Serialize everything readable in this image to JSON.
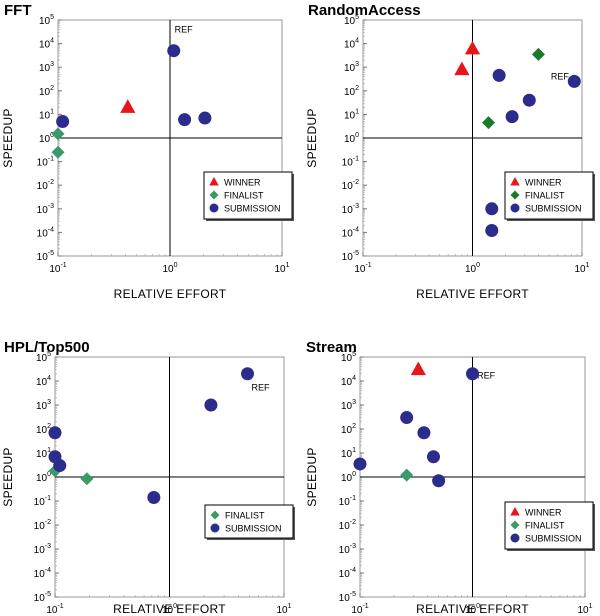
{
  "colors": {
    "winner": "#e8161b",
    "finalist": "#3a9a6a",
    "finalist_alt": "#1a7a2a",
    "submission": "#2c2c8c"
  },
  "chart_data": [
    {
      "type": "scatter",
      "title": "FFT",
      "xlabel": "RELATIVE EFFORT",
      "ylabel": "SPEEDUP",
      "xscale": "log",
      "yscale": "log",
      "xlim": [
        0.1,
        10
      ],
      "ylim": [
        1e-05,
        100000.0
      ],
      "reference_lines": {
        "x": 1,
        "y": 1
      },
      "legend_placement": "bottom-right",
      "legend": [
        "WINNER",
        "FINALIST",
        "SUBMISSION"
      ],
      "annotations": [
        {
          "text": "REF",
          "x": 1.1,
          "y": 30000
        }
      ],
      "series": [
        {
          "name": "WINNER",
          "marker": "triangle",
          "color": "winner",
          "points": [
            [
              0.42,
              20
            ]
          ]
        },
        {
          "name": "FINALIST",
          "marker": "diamond",
          "color": "finalist",
          "points": [
            [
              0.1,
              1.5
            ],
            [
              0.1,
              0.25
            ]
          ]
        },
        {
          "name": "SUBMISSION",
          "marker": "circle",
          "color": "submission",
          "points": [
            [
              0.11,
              5
            ],
            [
              1.08,
              5000
            ],
            [
              1.35,
              6
            ],
            [
              2.05,
              7
            ]
          ]
        }
      ]
    },
    {
      "type": "scatter",
      "title": "RandomAccess",
      "xlabel": "RELATIVE EFFORT",
      "ylabel": "SPEEDUP",
      "xscale": "log",
      "yscale": "log",
      "xlim": [
        0.1,
        10
      ],
      "ylim": [
        1e-05,
        100000.0
      ],
      "reference_lines": {
        "x": 1,
        "y": 1
      },
      "legend_placement": "middle-right",
      "legend": [
        "WINNER",
        "FINALIST",
        "SUBMISSION"
      ],
      "annotations": [
        {
          "text": "REF",
          "x": 5.2,
          "y": 300
        }
      ],
      "series": [
        {
          "name": "WINNER",
          "marker": "triangle",
          "color": "winner",
          "points": [
            [
              1.0,
              6000
            ],
            [
              0.8,
              800
            ]
          ]
        },
        {
          "name": "FINALIST",
          "marker": "diamond",
          "color": "finalist_alt",
          "points": [
            [
              4.0,
              3500
            ],
            [
              1.4,
              4.5
            ]
          ]
        },
        {
          "name": "SUBMISSION",
          "marker": "circle",
          "color": "submission",
          "points": [
            [
              8.5,
              250
            ],
            [
              1.75,
              450
            ],
            [
              3.3,
              40
            ],
            [
              2.3,
              8
            ],
            [
              1.5,
              0.001
            ],
            [
              1.5,
              0.00012
            ]
          ]
        }
      ]
    },
    {
      "type": "scatter",
      "title": "HPL/Top500",
      "xlabel": "RELATIVE EFFORT",
      "ylabel": "SPEEDUP",
      "xscale": "log",
      "yscale": "log",
      "xlim": [
        0.1,
        10
      ],
      "ylim": [
        1e-05,
        100000.0
      ],
      "reference_lines": {
        "x": 1,
        "y": 1
      },
      "legend_placement": "bottom-right",
      "legend": [
        "FINALIST",
        "SUBMISSION"
      ],
      "annotations": [
        {
          "text": "REF",
          "x": 5.2,
          "y": 4000
        }
      ],
      "series": [
        {
          "name": "FINALIST",
          "marker": "diamond",
          "color": "finalist",
          "points": [
            [
              0.1,
              1.8
            ],
            [
              0.19,
              0.85
            ]
          ]
        },
        {
          "name": "SUBMISSION",
          "marker": "circle",
          "color": "submission",
          "points": [
            [
              0.1,
              70
            ],
            [
              0.1,
              7
            ],
            [
              0.11,
              3
            ],
            [
              0.73,
              0.14
            ],
            [
              2.3,
              1000
            ],
            [
              4.8,
              20000
            ]
          ]
        }
      ]
    },
    {
      "type": "scatter",
      "title": "Stream",
      "xlabel": "RELATIVE EFFORT",
      "ylabel": "SPEEDUP",
      "xscale": "log",
      "yscale": "log",
      "xlim": [
        0.1,
        10
      ],
      "ylim": [
        1e-05,
        100000.0
      ],
      "reference_lines": {
        "x": 1,
        "y": 1
      },
      "legend_placement": "bottom-right",
      "legend": [
        "WINNER",
        "FINALIST",
        "SUBMISSION"
      ],
      "annotations": [
        {
          "text": "REF",
          "x": 1.1,
          "y": 13000
        }
      ],
      "series": [
        {
          "name": "WINNER",
          "marker": "triangle",
          "color": "winner",
          "points": [
            [
              0.33,
              30000
            ]
          ]
        },
        {
          "name": "FINALIST",
          "marker": "diamond",
          "color": "finalist",
          "points": [
            [
              0.26,
              1.2
            ]
          ]
        },
        {
          "name": "SUBMISSION",
          "marker": "circle",
          "color": "submission",
          "points": [
            [
              1.0,
              20000
            ],
            [
              0.26,
              300
            ],
            [
              0.37,
              70
            ],
            [
              0.1,
              3.5
            ],
            [
              0.45,
              7
            ],
            [
              0.5,
              0.7
            ]
          ]
        }
      ]
    }
  ]
}
